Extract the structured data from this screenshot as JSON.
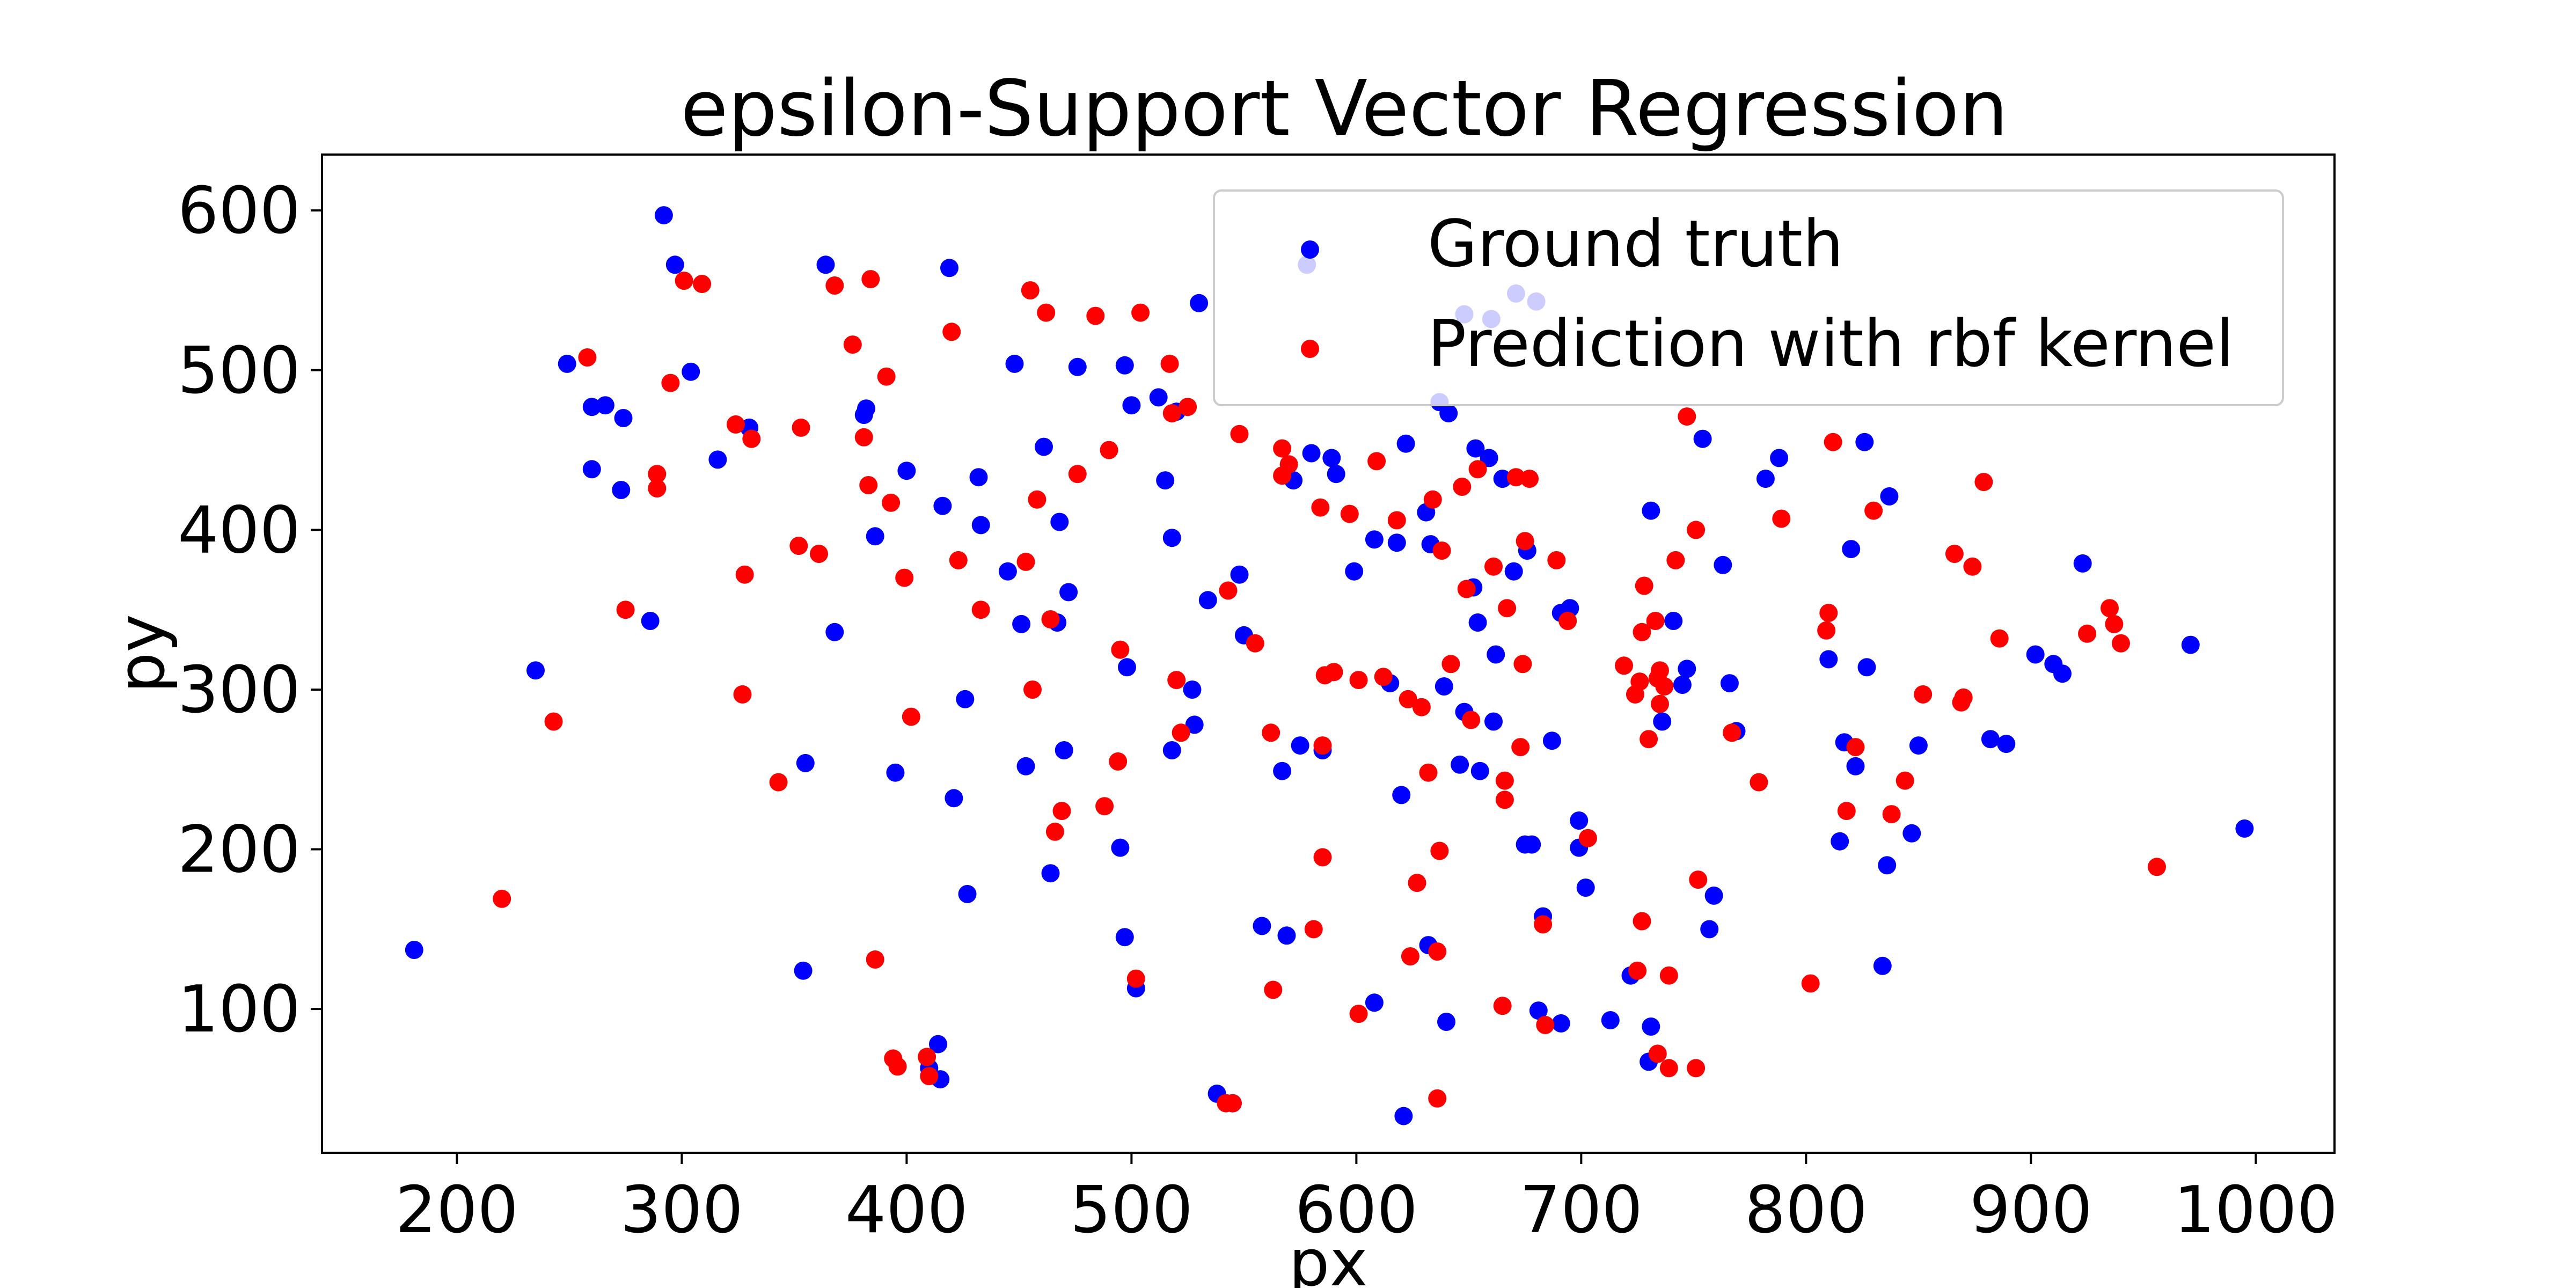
{
  "chart_data": {
    "type": "scatter",
    "title": "epsilon-Support Vector Regression",
    "xlabel": "px",
    "ylabel": "py",
    "xlim": [
      140,
      1035
    ],
    "ylim": [
      10,
      635
    ],
    "xticks": [
      200,
      300,
      400,
      500,
      600,
      700,
      800,
      900,
      1000
    ],
    "yticks": [
      100,
      200,
      300,
      400,
      500,
      600
    ],
    "grid": false,
    "legend_position": "top-right",
    "series": [
      {
        "name": "Ground truth",
        "color": "#0000ff",
        "points": [
          [
            181,
            137
          ],
          [
            235,
            312
          ],
          [
            249,
            504
          ],
          [
            260,
            438
          ],
          [
            260,
            477
          ],
          [
            266,
            478
          ],
          [
            273,
            425
          ],
          [
            274,
            470
          ],
          [
            286,
            343
          ],
          [
            292,
            597
          ],
          [
            297,
            566
          ],
          [
            304,
            499
          ],
          [
            316,
            444
          ],
          [
            330,
            464
          ],
          [
            354,
            124
          ],
          [
            355,
            254
          ],
          [
            364,
            566
          ],
          [
            368,
            336
          ],
          [
            381,
            472
          ],
          [
            382,
            476
          ],
          [
            386,
            396
          ],
          [
            395,
            248
          ],
          [
            400,
            437
          ],
          [
            410,
            63
          ],
          [
            414,
            78
          ],
          [
            415,
            56
          ],
          [
            416,
            415
          ],
          [
            419,
            564
          ],
          [
            421,
            232
          ],
          [
            426,
            294
          ],
          [
            427,
            172
          ],
          [
            432,
            433
          ],
          [
            433,
            403
          ],
          [
            445,
            374
          ],
          [
            448,
            504
          ],
          [
            451,
            341
          ],
          [
            453,
            252
          ],
          [
            461,
            452
          ],
          [
            464,
            185
          ],
          [
            467,
            342
          ],
          [
            468,
            405
          ],
          [
            470,
            262
          ],
          [
            472,
            361
          ],
          [
            476,
            502
          ],
          [
            495,
            201
          ],
          [
            497,
            503
          ],
          [
            497,
            145
          ],
          [
            498,
            314
          ],
          [
            500,
            478
          ],
          [
            502,
            113
          ],
          [
            512,
            483
          ],
          [
            515,
            431
          ],
          [
            518,
            262
          ],
          [
            518,
            395
          ],
          [
            520,
            474
          ],
          [
            527,
            300
          ],
          [
            528,
            278
          ],
          [
            530,
            542
          ],
          [
            534,
            356
          ],
          [
            538,
            47
          ],
          [
            545,
            41
          ],
          [
            548,
            372
          ],
          [
            550,
            334
          ],
          [
            558,
            152
          ],
          [
            567,
            249
          ],
          [
            569,
            146
          ],
          [
            572,
            431
          ],
          [
            575,
            265
          ],
          [
            578,
            566
          ],
          [
            580,
            448
          ],
          [
            585,
            262
          ],
          [
            589,
            445
          ],
          [
            591,
            435
          ],
          [
            599,
            374
          ],
          [
            608,
            104
          ],
          [
            608,
            394
          ],
          [
            615,
            304
          ],
          [
            618,
            392
          ],
          [
            620,
            234
          ],
          [
            621,
            33
          ],
          [
            622,
            454
          ],
          [
            631,
            411
          ],
          [
            632,
            140
          ],
          [
            633,
            391
          ],
          [
            637,
            480
          ],
          [
            639,
            302
          ],
          [
            640,
            92
          ],
          [
            641,
            473
          ],
          [
            646,
            253
          ],
          [
            648,
            286
          ],
          [
            648,
            535
          ],
          [
            652,
            364
          ],
          [
            653,
            451
          ],
          [
            654,
            342
          ],
          [
            655,
            249
          ],
          [
            659,
            445
          ],
          [
            660,
            532
          ],
          [
            661,
            280
          ],
          [
            662,
            322
          ],
          [
            665,
            432
          ],
          [
            670,
            374
          ],
          [
            671,
            548
          ],
          [
            675,
            203
          ],
          [
            676,
            387
          ],
          [
            678,
            203
          ],
          [
            680,
            543
          ],
          [
            681,
            99
          ],
          [
            683,
            158
          ],
          [
            687,
            268
          ],
          [
            691,
            91
          ],
          [
            691,
            348
          ],
          [
            695,
            351
          ],
          [
            699,
            218
          ],
          [
            699,
            201
          ],
          [
            702,
            176
          ],
          [
            713,
            93
          ],
          [
            722,
            121
          ],
          [
            730,
            67
          ],
          [
            731,
            89
          ],
          [
            731,
            412
          ],
          [
            736,
            280
          ],
          [
            741,
            343
          ],
          [
            745,
            303
          ],
          [
            747,
            313
          ],
          [
            754,
            457
          ],
          [
            757,
            150
          ],
          [
            759,
            171
          ],
          [
            763,
            378
          ],
          [
            766,
            304
          ],
          [
            769,
            274
          ],
          [
            782,
            432
          ],
          [
            788,
            445
          ],
          [
            810,
            319
          ],
          [
            815,
            205
          ],
          [
            817,
            267
          ],
          [
            820,
            388
          ],
          [
            822,
            252
          ],
          [
            826,
            455
          ],
          [
            827,
            314
          ],
          [
            834,
            127
          ],
          [
            836,
            190
          ],
          [
            837,
            421
          ],
          [
            847,
            210
          ],
          [
            850,
            265
          ],
          [
            882,
            269
          ],
          [
            889,
            266
          ],
          [
            902,
            322
          ],
          [
            910,
            316
          ],
          [
            914,
            310
          ],
          [
            923,
            379
          ],
          [
            971,
            328
          ],
          [
            995,
            213
          ]
        ]
      },
      {
        "name": "Prediction with rbf kernel",
        "color": "#ff0000",
        "points": [
          [
            220,
            169
          ],
          [
            243,
            280
          ],
          [
            258,
            508
          ],
          [
            275,
            350
          ],
          [
            289,
            435
          ],
          [
            289,
            426
          ],
          [
            295,
            492
          ],
          [
            301,
            556
          ],
          [
            309,
            554
          ],
          [
            324,
            466
          ],
          [
            327,
            297
          ],
          [
            328,
            372
          ],
          [
            331,
            457
          ],
          [
            343,
            242
          ],
          [
            352,
            390
          ],
          [
            353,
            464
          ],
          [
            361,
            385
          ],
          [
            368,
            553
          ],
          [
            376,
            516
          ],
          [
            381,
            458
          ],
          [
            383,
            428
          ],
          [
            384,
            557
          ],
          [
            386,
            131
          ],
          [
            391,
            496
          ],
          [
            393,
            417
          ],
          [
            394,
            69
          ],
          [
            396,
            64
          ],
          [
            399,
            370
          ],
          [
            402,
            283
          ],
          [
            409,
            70
          ],
          [
            410,
            58
          ],
          [
            420,
            524
          ],
          [
            423,
            381
          ],
          [
            433,
            350
          ],
          [
            453,
            380
          ],
          [
            455,
            550
          ],
          [
            456,
            300
          ],
          [
            458,
            419
          ],
          [
            462,
            536
          ],
          [
            464,
            344
          ],
          [
            466,
            211
          ],
          [
            469,
            224
          ],
          [
            476,
            435
          ],
          [
            484,
            534
          ],
          [
            488,
            227
          ],
          [
            490,
            450
          ],
          [
            494,
            255
          ],
          [
            495,
            325
          ],
          [
            502,
            119
          ],
          [
            504,
            536
          ],
          [
            517,
            504
          ],
          [
            518,
            473
          ],
          [
            520,
            306
          ],
          [
            522,
            273
          ],
          [
            525,
            477
          ],
          [
            542,
            41
          ],
          [
            543,
            362
          ],
          [
            545,
            41
          ],
          [
            548,
            460
          ],
          [
            555,
            329
          ],
          [
            562,
            273
          ],
          [
            563,
            112
          ],
          [
            567,
            451
          ],
          [
            567,
            434
          ],
          [
            570,
            441
          ],
          [
            581,
            150
          ],
          [
            584,
            414
          ],
          [
            585,
            265
          ],
          [
            585,
            195
          ],
          [
            586,
            309
          ],
          [
            590,
            311
          ],
          [
            597,
            410
          ],
          [
            601,
            97
          ],
          [
            601,
            306
          ],
          [
            609,
            443
          ],
          [
            612,
            308
          ],
          [
            618,
            406
          ],
          [
            623,
            294
          ],
          [
            624,
            133
          ],
          [
            627,
            179
          ],
          [
            629,
            289
          ],
          [
            632,
            248
          ],
          [
            634,
            419
          ],
          [
            636,
            136
          ],
          [
            636,
            44
          ],
          [
            637,
            199
          ],
          [
            638,
            387
          ],
          [
            642,
            316
          ],
          [
            647,
            427
          ],
          [
            649,
            363
          ],
          [
            651,
            281
          ],
          [
            654,
            438
          ],
          [
            661,
            377
          ],
          [
            665,
            102
          ],
          [
            666,
            243
          ],
          [
            666,
            231
          ],
          [
            667,
            351
          ],
          [
            671,
            433
          ],
          [
            673,
            264
          ],
          [
            674,
            316
          ],
          [
            675,
            393
          ],
          [
            677,
            432
          ],
          [
            683,
            153
          ],
          [
            684,
            90
          ],
          [
            689,
            381
          ],
          [
            694,
            343
          ],
          [
            703,
            207
          ],
          [
            719,
            315
          ],
          [
            724,
            297
          ],
          [
            725,
            124
          ],
          [
            726,
            305
          ],
          [
            727,
            336
          ],
          [
            727,
            155
          ],
          [
            728,
            365
          ],
          [
            730,
            269
          ],
          [
            733,
            343
          ],
          [
            734,
            72
          ],
          [
            734,
            307
          ],
          [
            735,
            291
          ],
          [
            735,
            312
          ],
          [
            737,
            302
          ],
          [
            739,
            63
          ],
          [
            739,
            121
          ],
          [
            742,
            381
          ],
          [
            747,
            471
          ],
          [
            751,
            63
          ],
          [
            751,
            400
          ],
          [
            752,
            181
          ],
          [
            767,
            273
          ],
          [
            779,
            242
          ],
          [
            789,
            407
          ],
          [
            802,
            116
          ],
          [
            809,
            337
          ],
          [
            810,
            348
          ],
          [
            812,
            455
          ],
          [
            818,
            224
          ],
          [
            822,
            264
          ],
          [
            830,
            412
          ],
          [
            838,
            222
          ],
          [
            844,
            243
          ],
          [
            852,
            297
          ],
          [
            866,
            385
          ],
          [
            869,
            292
          ],
          [
            870,
            295
          ],
          [
            874,
            377
          ],
          [
            879,
            430
          ],
          [
            886,
            332
          ],
          [
            925,
            335
          ],
          [
            935,
            351
          ],
          [
            937,
            341
          ],
          [
            940,
            329
          ],
          [
            956,
            189
          ]
        ]
      }
    ]
  }
}
